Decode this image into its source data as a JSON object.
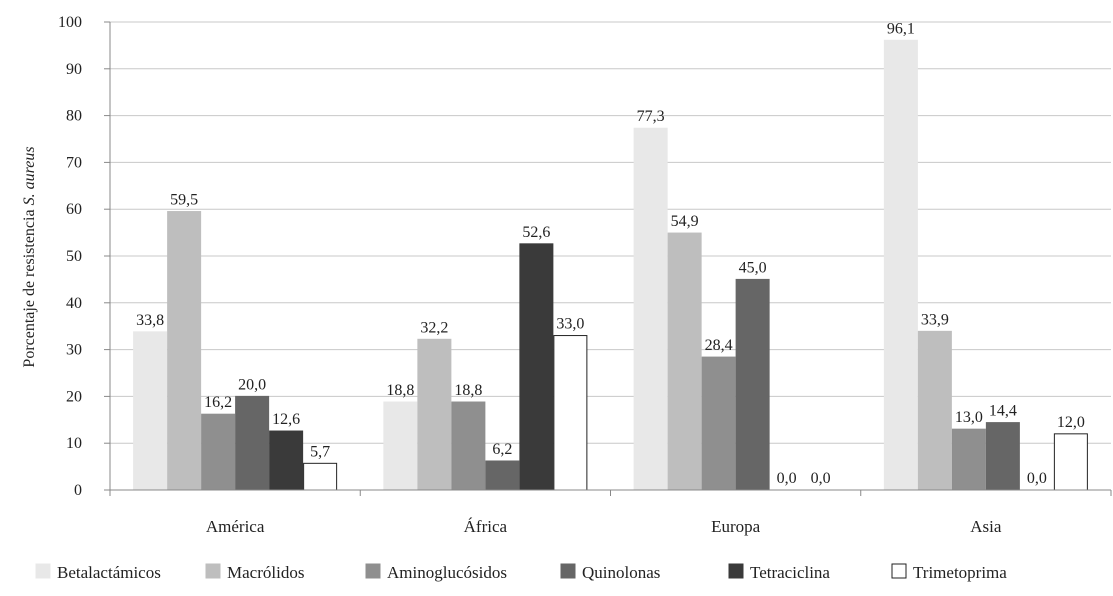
{
  "chart_data": {
    "type": "bar",
    "categories": [
      "América",
      "África",
      "Europa",
      "Asia"
    ],
    "series": [
      {
        "name": "Betalactámicos",
        "color": "#e8e8e8",
        "stroke": "#e8e8e8",
        "values": [
          33.8,
          18.8,
          77.3,
          96.1
        ],
        "labels": [
          "33,8",
          "18,8",
          "77,3",
          "96,1"
        ]
      },
      {
        "name": "Macrólidos",
        "color": "#bebebe",
        "stroke": "#bebebe",
        "values": [
          59.5,
          32.2,
          54.9,
          33.9
        ],
        "labels": [
          "59,5",
          "32,2",
          "54,9",
          "33,9"
        ]
      },
      {
        "name": "Aminoglucósidos",
        "color": "#8f8f8f",
        "stroke": "#8f8f8f",
        "values": [
          16.2,
          18.8,
          28.4,
          13.0
        ],
        "labels": [
          "16,2",
          "18,8",
          "28,4",
          "13,0"
        ]
      },
      {
        "name": "Quinolonas",
        "color": "#666666",
        "stroke": "#666666",
        "values": [
          20.0,
          6.2,
          45.0,
          14.4
        ],
        "labels": [
          "20,0",
          "6,2",
          "45,0",
          "14,4"
        ]
      },
      {
        "name": "Tetraciclina",
        "color": "#3a3a3a",
        "stroke": "#3a3a3a",
        "values": [
          12.6,
          52.6,
          0.0,
          0.0
        ],
        "labels": [
          "12,6",
          "52,6",
          "0,0",
          "0,0"
        ]
      },
      {
        "name": "Trimetoprima",
        "color": "#ffffff",
        "stroke": "#222222",
        "values": [
          5.7,
          33.0,
          0.0,
          12.0
        ],
        "labels": [
          "5,7",
          "33,0",
          "0,0",
          "12,0"
        ]
      }
    ],
    "ylabel_prefix": "Porcentaje de resistencia ",
    "ylabel_italic": "S. aureus",
    "ylim": [
      0,
      100
    ],
    "yticks": [
      "0",
      "10",
      "20",
      "30",
      "40",
      "50",
      "60",
      "70",
      "80",
      "90",
      "100"
    ],
    "grid": true,
    "legend_position": "bottom"
  }
}
